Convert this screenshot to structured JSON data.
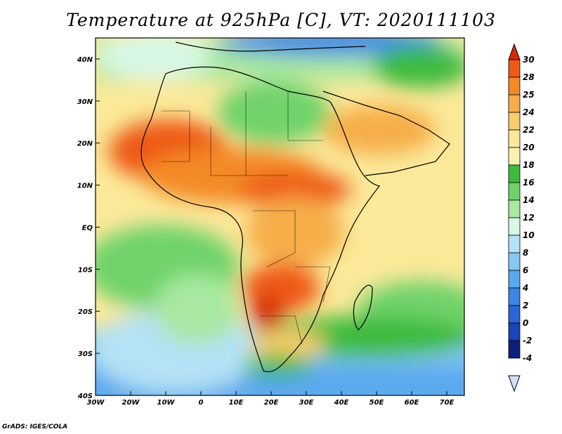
{
  "title": "Temperature at 925hPa [C], VT: 2020111103",
  "credit": "GrADS: IGES/COLA",
  "map": {
    "region": "Africa",
    "lon_range": [
      -30,
      75
    ],
    "lat_range": [
      -40,
      45
    ],
    "x_ticks": [
      "30W",
      "20W",
      "10W",
      "0",
      "10E",
      "20E",
      "30E",
      "40E",
      "50E",
      "60E",
      "70E"
    ],
    "y_ticks": [
      "40N",
      "30N",
      "20N",
      "10N",
      "EQ",
      "10S",
      "20S",
      "30S",
      "40S"
    ]
  },
  "colorbar": {
    "labels": [
      "30",
      "28",
      "25",
      "24",
      "22",
      "20",
      "18",
      "16",
      "14",
      "12",
      "10",
      "8",
      "6",
      "4",
      "2",
      "0",
      "-2",
      "-4"
    ],
    "colors": [
      "#d62a0a",
      "#ee5a12",
      "#f48a26",
      "#f6ae4a",
      "#f8cc6c",
      "#fbe99a",
      "#f7f2b2",
      "#3dbb3d",
      "#6fd36a",
      "#a8e8a0",
      "#d8f8e6",
      "#b4e2f6",
      "#86c8f4",
      "#5aa8ee",
      "#3b86e6",
      "#2a64d6",
      "#1b44b8",
      "#0c1f7a",
      "#d2e0ff"
    ]
  }
}
